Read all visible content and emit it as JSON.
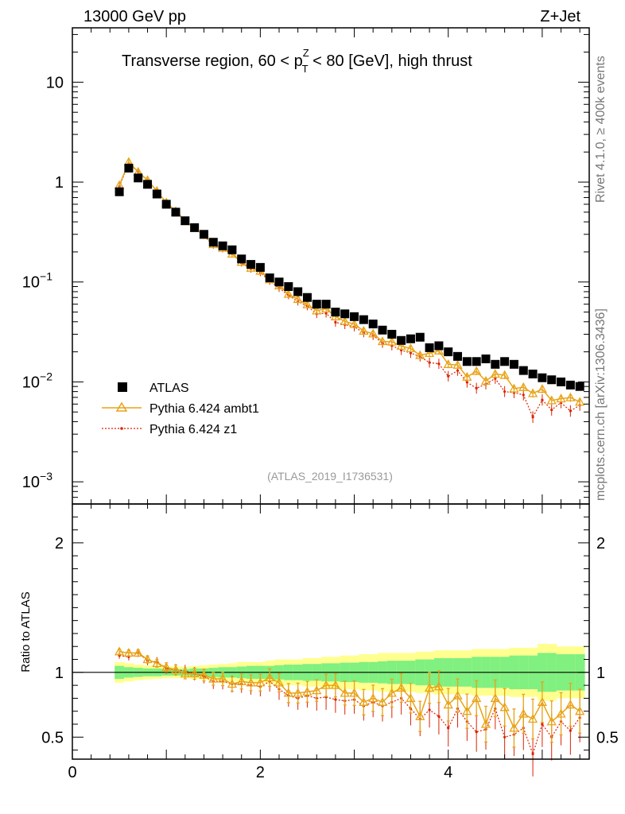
{
  "header": {
    "energy": "13000 GeV pp",
    "process": "Z+Jet",
    "title_pre": "Transverse region, 60 < p",
    "title_sup": "Z",
    "title_sub": "T",
    "title_post": " < 80 [GeV], high thrust",
    "rivet": "Rivet 4.1.0, ≥ 400k events",
    "mcplots": "mcplots.cern.ch [arXiv:1306.3436]",
    "analysis": "(ATLAS_2019_I1736531)"
  },
  "legend": {
    "atlas": "ATLAS",
    "ambt1": "Pythia 6.424 ambt1",
    "z1": "Pythia 6.424 z1"
  },
  "ratio": {
    "ylabel": "Ratio to ATLAS"
  },
  "colors": {
    "data": "#000000",
    "ambt1": "#e8a317",
    "z1": "#dd2200",
    "band_inner": "#80f080",
    "band_outer": "#ffff90"
  },
  "chart_data": {
    "type": "scatter",
    "main": {
      "yscale": "log",
      "ylim": [
        0.0006,
        35
      ],
      "xlim": [
        0,
        5.5
      ],
      "yticks": [
        {
          "v": 10,
          "m": "10",
          "e": ""
        },
        {
          "v": 1,
          "m": "1",
          "e": ""
        },
        {
          "v": 0.1,
          "m": "10",
          "e": "−1"
        },
        {
          "v": 0.01,
          "m": "10",
          "e": "−2"
        },
        {
          "v": 0.001,
          "m": "10",
          "e": "−3"
        }
      ]
    },
    "ratio_axes": {
      "ylim": [
        0.33,
        2.3
      ],
      "yticks": [
        "0.5",
        "1",
        "2"
      ]
    },
    "x_ticks": [
      "0",
      "2",
      "4"
    ],
    "x": [
      0.5,
      0.6,
      0.7,
      0.8,
      0.9,
      1.0,
      1.1,
      1.2,
      1.3,
      1.4,
      1.5,
      1.6,
      1.7,
      1.8,
      1.9,
      2.0,
      2.1,
      2.2,
      2.3,
      2.4,
      2.5,
      2.6,
      2.7,
      2.8,
      2.9,
      3.0,
      3.1,
      3.2,
      3.3,
      3.4,
      3.5,
      3.6,
      3.7,
      3.8,
      3.9,
      4.0,
      4.1,
      4.2,
      4.3,
      4.4,
      4.5,
      4.6,
      4.7,
      4.8,
      4.9,
      5.0,
      5.1,
      5.2,
      5.3,
      5.4
    ],
    "series": [
      {
        "name": "ATLAS",
        "values": [
          0.8,
          1.38,
          1.1,
          0.95,
          0.76,
          0.6,
          0.5,
          0.41,
          0.35,
          0.3,
          0.25,
          0.23,
          0.21,
          0.17,
          0.15,
          0.14,
          0.11,
          0.1,
          0.09,
          0.08,
          0.07,
          0.06,
          0.06,
          0.05,
          0.048,
          0.045,
          0.042,
          0.038,
          0.033,
          0.03,
          0.026,
          0.027,
          0.028,
          0.022,
          0.023,
          0.02,
          0.018,
          0.016,
          0.016,
          0.017,
          0.015,
          0.016,
          0.015,
          0.013,
          0.012,
          0.011,
          0.0105,
          0.01,
          0.0093,
          0.009
        ]
      },
      {
        "name": "Pythia 6.424 ambt1",
        "ratio": [
          1.16,
          1.15,
          1.15,
          1.1,
          1.07,
          1.04,
          1.02,
          0.99,
          0.99,
          0.98,
          0.95,
          0.95,
          0.91,
          0.93,
          0.92,
          0.92,
          0.96,
          0.92,
          0.84,
          0.84,
          0.85,
          0.86,
          0.9,
          0.9,
          0.84,
          0.84,
          0.77,
          0.8,
          0.77,
          0.84,
          0.88,
          0.8,
          0.66,
          0.88,
          0.89,
          0.75,
          0.82,
          0.7,
          0.8,
          0.6,
          0.8,
          0.73,
          0.57,
          0.68,
          0.64,
          0.77,
          0.62,
          0.68,
          0.75,
          0.7
        ]
      },
      {
        "name": "Pythia 6.424 z1",
        "ratio": [
          1.13,
          1.12,
          1.15,
          1.09,
          1.08,
          1.03,
          1.02,
          1.01,
          0.99,
          0.97,
          0.93,
          0.93,
          0.91,
          0.91,
          0.9,
          0.89,
          0.93,
          0.87,
          0.82,
          0.8,
          0.82,
          0.8,
          0.81,
          0.79,
          0.78,
          0.79,
          0.74,
          0.77,
          0.74,
          0.77,
          0.8,
          0.72,
          0.64,
          0.71,
          0.66,
          0.57,
          0.72,
          0.62,
          0.54,
          0.56,
          0.72,
          0.5,
          0.52,
          0.57,
          0.37,
          0.6,
          0.5,
          0.62,
          0.55,
          0.65
        ]
      }
    ],
    "band_inner": [
      0.05,
      0.04,
      0.035,
      0.03,
      0.03,
      0.025,
      0.025,
      0.025,
      0.03,
      0.03,
      0.035,
      0.04,
      0.04,
      0.045,
      0.05,
      0.05,
      0.05,
      0.055,
      0.06,
      0.06,
      0.065,
      0.065,
      0.07,
      0.07,
      0.075,
      0.075,
      0.08,
      0.08,
      0.085,
      0.09,
      0.09,
      0.09,
      0.1,
      0.1,
      0.11,
      0.11,
      0.11,
      0.11,
      0.12,
      0.12,
      0.12,
      0.12,
      0.13,
      0.13,
      0.13,
      0.15,
      0.15,
      0.14,
      0.14,
      0.14
    ],
    "band_outer": [
      0.08,
      0.07,
      0.06,
      0.055,
      0.05,
      0.045,
      0.045,
      0.045,
      0.05,
      0.055,
      0.06,
      0.065,
      0.07,
      0.08,
      0.08,
      0.08,
      0.09,
      0.1,
      0.1,
      0.1,
      0.11,
      0.11,
      0.12,
      0.12,
      0.13,
      0.13,
      0.14,
      0.14,
      0.15,
      0.15,
      0.15,
      0.15,
      0.16,
      0.16,
      0.17,
      0.17,
      0.17,
      0.17,
      0.18,
      0.18,
      0.18,
      0.18,
      0.19,
      0.19,
      0.19,
      0.22,
      0.22,
      0.2,
      0.2,
      0.2
    ]
  }
}
